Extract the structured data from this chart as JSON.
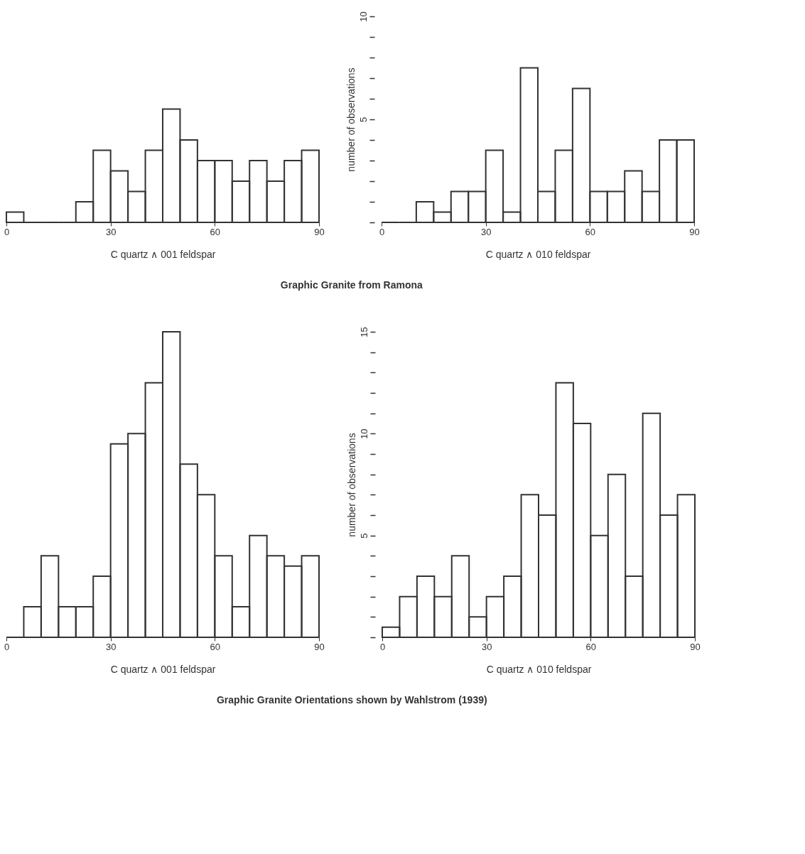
{
  "chart_data": [
    {
      "type": "histogram",
      "color": "#333333",
      "bins": [
        0,
        5,
        10,
        15,
        20,
        25,
        30,
        35,
        40,
        45,
        50,
        55,
        60,
        65,
        70,
        75,
        80,
        85,
        90
      ],
      "values": [
        0.5,
        0,
        0,
        0,
        1,
        3.5,
        2.5,
        1.5,
        3.5,
        5.5,
        4,
        3,
        3,
        2,
        3,
        2,
        3,
        3.5
      ],
      "xlabel": "C quartz ∧ 001 feldspar",
      "xlim": [
        0,
        90
      ],
      "xticks": [
        0,
        30,
        60,
        90
      ],
      "ylim": [
        0,
        10
      ],
      "tick_labels": "x",
      "annotations": [
        "Graphic Granite from Ramona"
      ]
    },
    {
      "type": "histogram",
      "color": "#333333",
      "bins": [
        0,
        5,
        10,
        15,
        20,
        25,
        30,
        35,
        40,
        45,
        50,
        55,
        60,
        65,
        70,
        75,
        80,
        85,
        90
      ],
      "values": [
        0,
        0,
        1,
        0.5,
        1.5,
        1.5,
        3.5,
        0.5,
        7.5,
        1.5,
        3.5,
        6.5,
        1.5,
        1.5,
        2.5,
        1.5,
        4,
        4
      ],
      "xlabel": "C quartz ∧ 010 feldspar",
      "ylabel": "number of observations",
      "xlim": [
        0,
        90
      ],
      "xticks": [
        0,
        30,
        60,
        90
      ],
      "ylim": [
        0,
        10
      ],
      "yticks": [
        {
          "value": 0,
          "label": null
        },
        {
          "value": 1,
          "label": null
        },
        {
          "value": 2,
          "label": null
        },
        {
          "value": 3,
          "label": null
        },
        {
          "value": 4,
          "label": null
        },
        5,
        {
          "value": 6,
          "label": null
        },
        {
          "value": 7,
          "label": null
        },
        {
          "value": 8,
          "label": null
        },
        {
          "value": 9,
          "label": null
        },
        10
      ]
    },
    {
      "type": "histogram",
      "color": "#333333",
      "bins": [
        0,
        5,
        10,
        15,
        20,
        25,
        30,
        35,
        40,
        45,
        50,
        55,
        60,
        65,
        70,
        75,
        80,
        85,
        90
      ],
      "values": [
        0,
        1.5,
        4,
        1.5,
        1.5,
        3,
        9.5,
        10,
        12.5,
        15,
        8.5,
        7,
        4,
        1.5,
        5,
        4,
        3.5,
        4
      ],
      "xlabel": "C quartz ∧ 001 feldspar",
      "xlim": [
        0,
        90
      ],
      "xticks": [
        0,
        30,
        60,
        90
      ],
      "ylim": [
        0,
        15
      ],
      "tick_labels": "x",
      "annotations": [
        "Graphic Granite Orientations shown by Wahlstrom (1939)"
      ]
    },
    {
      "type": "histogram",
      "color": "#333333",
      "bins": [
        0,
        5,
        10,
        15,
        20,
        25,
        30,
        35,
        40,
        45,
        50,
        55,
        60,
        65,
        70,
        75,
        80,
        85,
        90
      ],
      "values": [
        0.5,
        2,
        3,
        2,
        4,
        1,
        2,
        3,
        7,
        6,
        12.5,
        10.5,
        5,
        8,
        3,
        11,
        6,
        7
      ],
      "xlabel": "C quartz ∧ 010 feldspar",
      "ylabel": "number of observations",
      "xlim": [
        0,
        90
      ],
      "xticks": [
        0,
        30,
        60,
        90
      ],
      "ylim": [
        0,
        15
      ],
      "yticks": [
        {
          "value": 0,
          "label": null
        },
        {
          "value": 1,
          "label": null
        },
        {
          "value": 2,
          "label": null
        },
        {
          "value": 3,
          "label": null
        },
        {
          "value": 4,
          "label": null
        },
        5,
        {
          "value": 6,
          "label": null
        },
        {
          "value": 7,
          "label": null
        },
        {
          "value": 8,
          "label": null
        },
        {
          "value": 9,
          "label": null
        },
        10,
        {
          "value": 11,
          "label": null
        },
        {
          "value": 12,
          "label": null
        },
        {
          "value": 13,
          "label": null
        },
        {
          "value": 14,
          "label": null
        },
        15
      ]
    }
  ]
}
